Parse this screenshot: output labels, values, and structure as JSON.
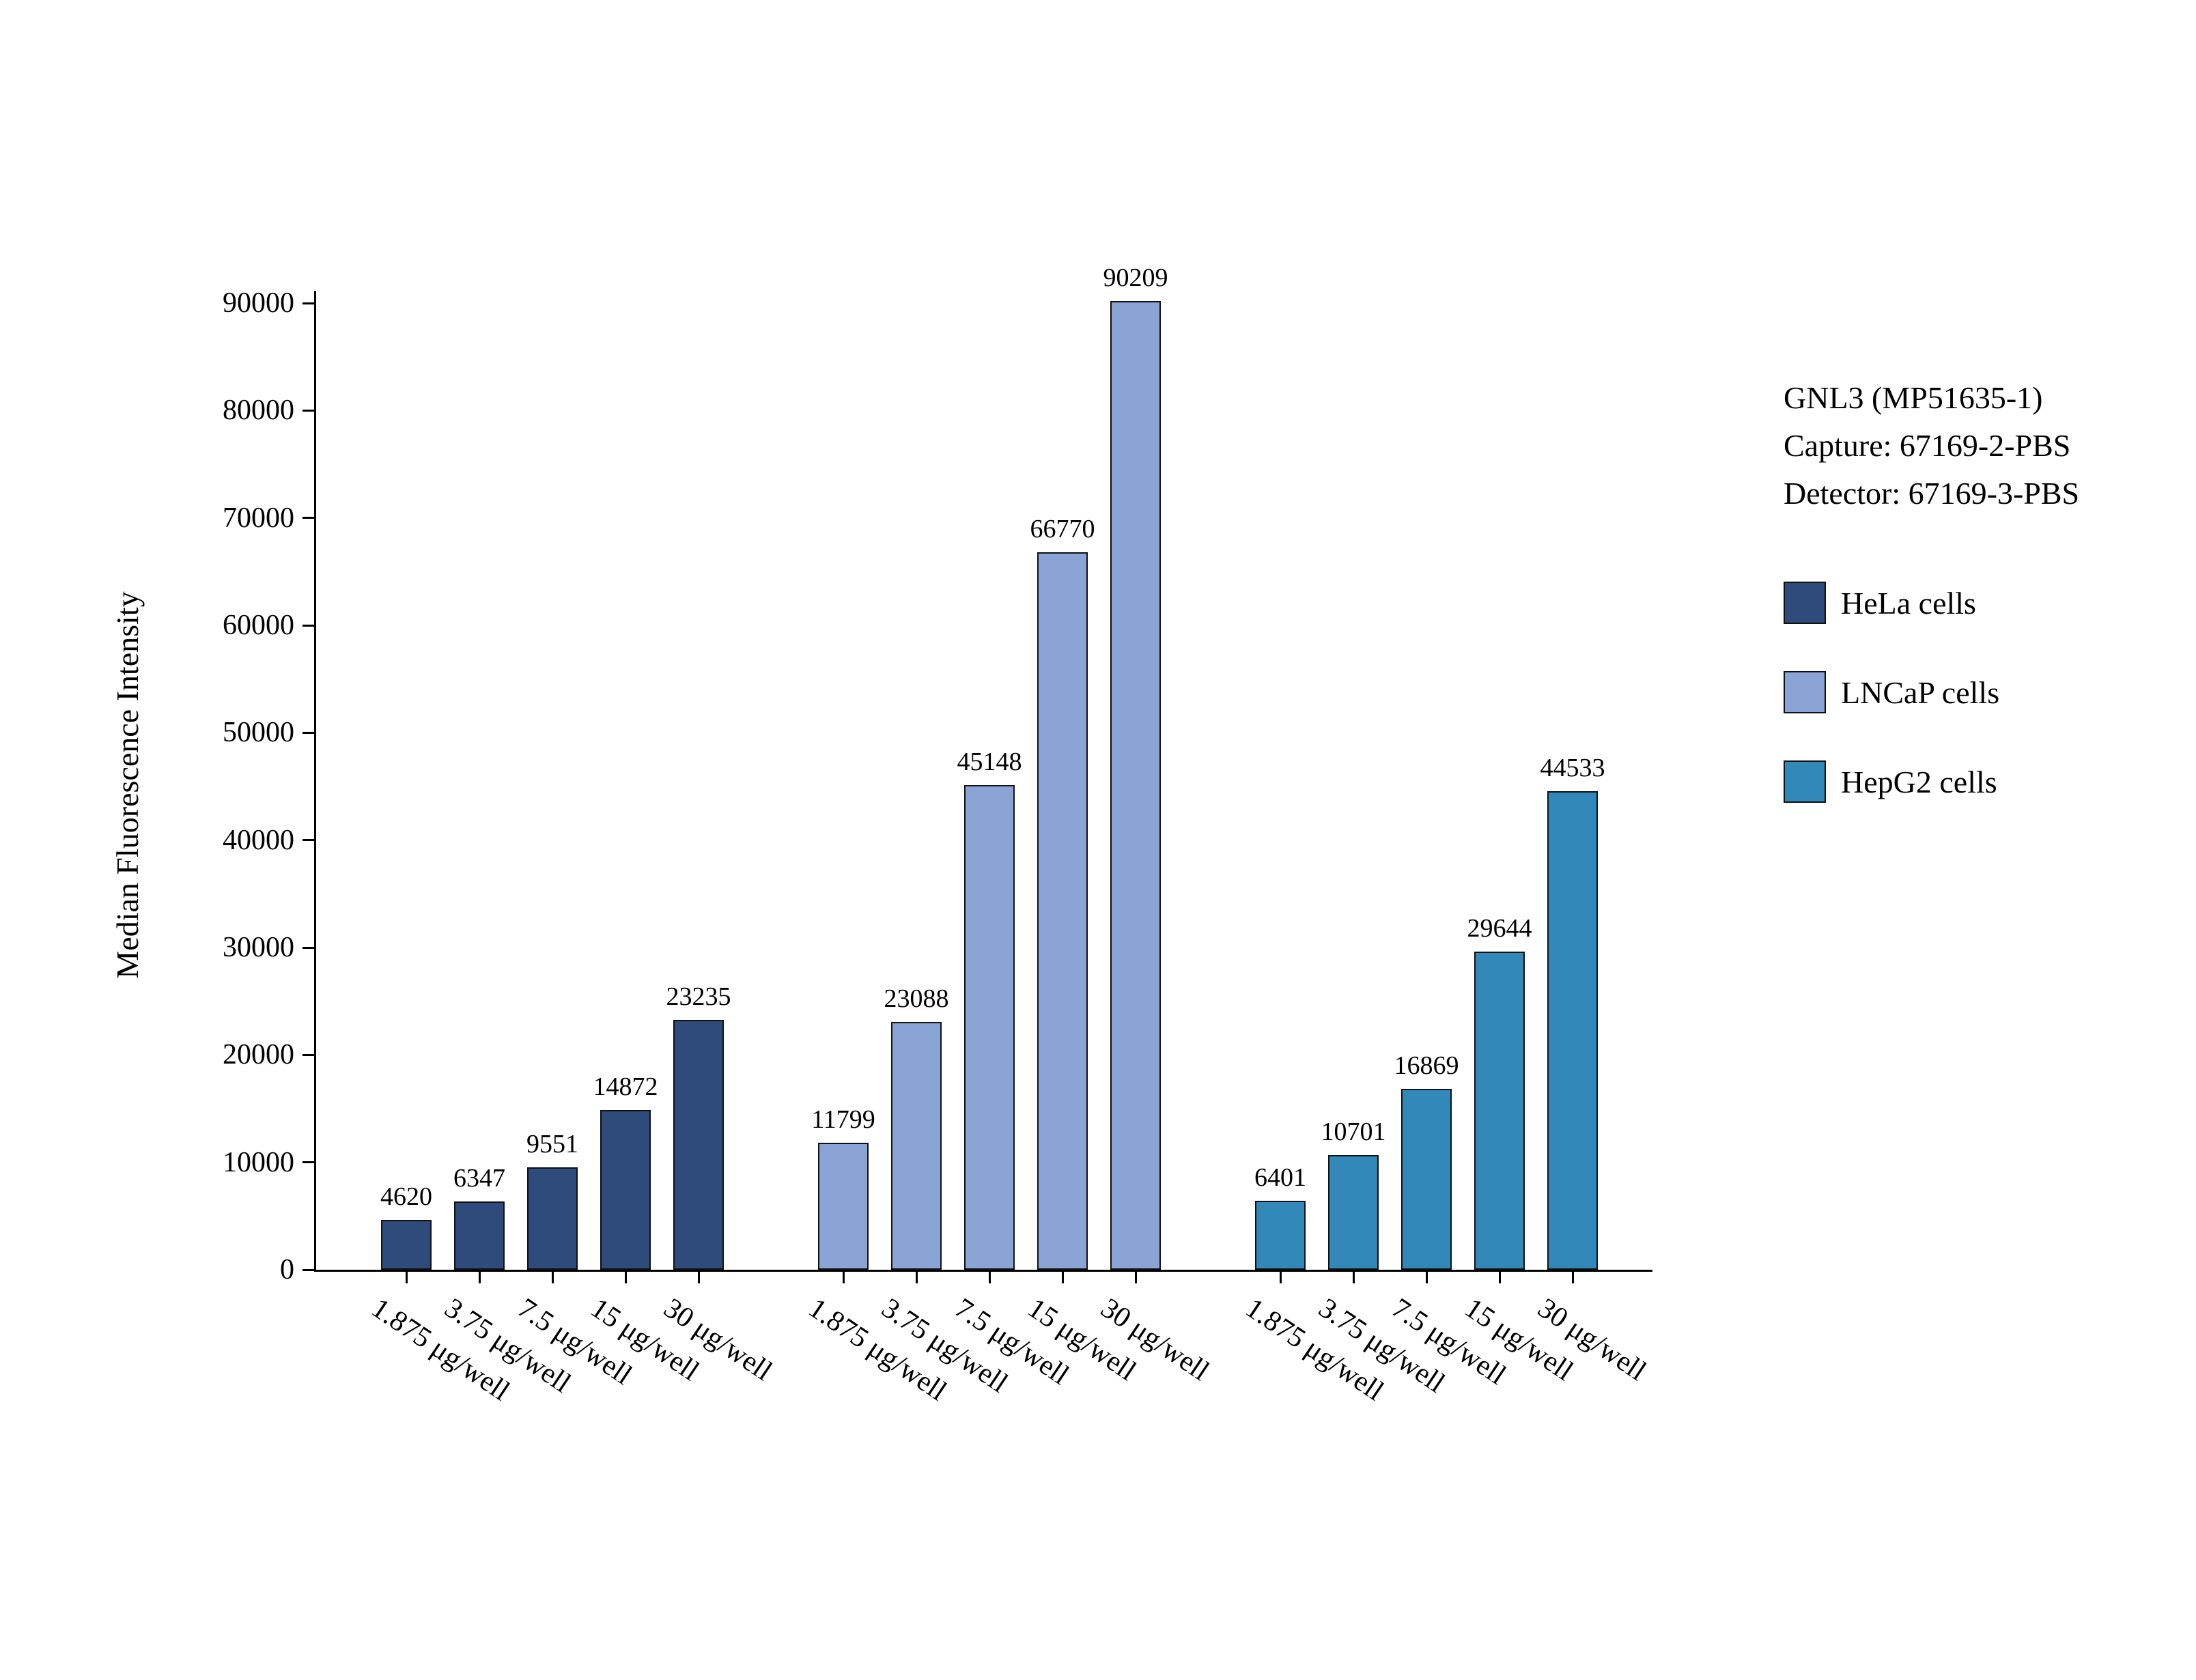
{
  "chart_data": {
    "type": "bar",
    "title": "",
    "ylabel": "Median Fluorescence Intensity",
    "xlabel": "",
    "ylim": [
      0,
      90000
    ],
    "ytick_step": 10000,
    "grid": false,
    "legend_position": "right",
    "categories": [
      "1.875 μg/well",
      "3.75 μg/well",
      "7.5 μg/well",
      "15 μg/well",
      "30 μg/well"
    ],
    "series": [
      {
        "name": "HeLa cells",
        "color": "#2f4b7b",
        "values": [
          4620,
          6347,
          9551,
          14872,
          23235
        ]
      },
      {
        "name": "LNCaP cells",
        "color": "#8aa4d6",
        "values": [
          11799,
          23088,
          45148,
          66770,
          90209
        ]
      },
      {
        "name": "HepG2 cells",
        "color": "#3289b9",
        "values": [
          6401,
          10701,
          16869,
          29644,
          44533
        ]
      }
    ],
    "annotation": {
      "lines": [
        "GNL3 (MP51635-1)",
        "Capture: 67169-2-PBS",
        "Detector: 67169-3-PBS"
      ]
    }
  }
}
